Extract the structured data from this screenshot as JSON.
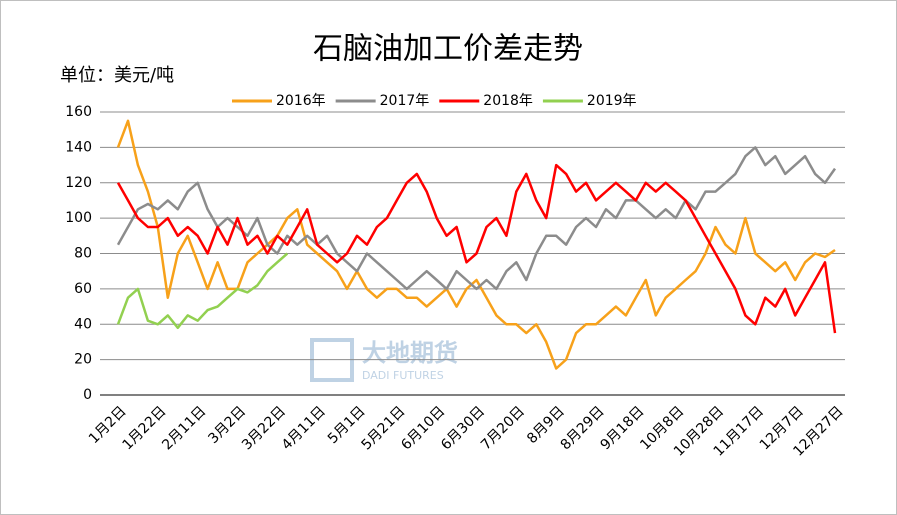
{
  "chart_data": {
    "type": "line",
    "title": "石脑油加工价差走势",
    "y_axis_label": "单位：美元/吨",
    "watermark": {
      "name": "大地期货",
      "subtitle": "DADI FUTURES"
    },
    "categories": [
      "1月2日",
      null,
      null,
      null,
      "1月22日",
      null,
      null,
      null,
      "2月11日",
      null,
      null,
      null,
      "3月2日",
      null,
      null,
      null,
      "3月22日",
      null,
      null,
      null,
      "4月11日",
      null,
      null,
      null,
      "5月1日",
      null,
      null,
      null,
      "5月21日",
      null,
      null,
      null,
      "6月10日",
      null,
      null,
      null,
      "6月30日",
      null,
      null,
      null,
      "7月20日",
      null,
      null,
      null,
      "8月9日",
      null,
      null,
      null,
      "8月29日",
      null,
      null,
      null,
      "9月18日",
      null,
      null,
      null,
      "10月8日",
      null,
      null,
      null,
      "10月28日",
      null,
      null,
      null,
      "11月17日",
      null,
      null,
      null,
      "12月7日",
      null,
      null,
      null,
      "12月27日"
    ],
    "series": [
      {
        "name": "2016年",
        "color": "#f7a11a",
        "values": [
          140,
          155,
          130,
          115,
          95,
          55,
          80,
          90,
          75,
          60,
          75,
          60,
          60,
          75,
          80,
          85,
          90,
          100,
          105,
          85,
          80,
          75,
          70,
          60,
          70,
          60,
          55,
          60,
          60,
          55,
          55,
          50,
          55,
          60,
          50,
          60,
          65,
          55,
          45,
          40,
          40,
          35,
          40,
          30,
          15,
          20,
          35,
          40,
          40,
          45,
          50,
          45,
          55,
          65,
          45,
          55,
          60,
          65,
          70,
          80,
          95,
          85,
          80,
          100,
          80,
          75,
          70,
          75,
          65,
          75,
          80,
          78,
          82
        ]
      },
      {
        "name": "2017年",
        "color": "#8c8c8c",
        "values": [
          85,
          95,
          105,
          108,
          105,
          110,
          105,
          115,
          120,
          105,
          95,
          100,
          95,
          90,
          100,
          85,
          80,
          90,
          85,
          90,
          85,
          90,
          80,
          75,
          70,
          80,
          75,
          70,
          65,
          60,
          65,
          70,
          65,
          60,
          70,
          65,
          60,
          65,
          60,
          70,
          75,
          65,
          80,
          90,
          90,
          85,
          95,
          100,
          95,
          105,
          100,
          110,
          110,
          105,
          100,
          105,
          100,
          110,
          105,
          115,
          115,
          120,
          125,
          135,
          140,
          130,
          135,
          125,
          130,
          135,
          125,
          120,
          128
        ]
      },
      {
        "name": "2018年",
        "color": "#ff0000",
        "values": [
          120,
          110,
          100,
          95,
          95,
          100,
          90,
          95,
          90,
          80,
          95,
          85,
          100,
          85,
          90,
          80,
          90,
          85,
          95,
          105,
          85,
          80,
          75,
          80,
          90,
          85,
          95,
          100,
          110,
          120,
          125,
          115,
          100,
          90,
          95,
          75,
          80,
          95,
          100,
          90,
          115,
          125,
          110,
          100,
          130,
          125,
          115,
          120,
          110,
          115,
          120,
          115,
          110,
          120,
          115,
          120,
          115,
          110,
          100,
          90,
          80,
          70,
          60,
          45,
          40,
          55,
          50,
          60,
          45,
          55,
          65,
          75,
          35
        ]
      },
      {
        "name": "2019年",
        "color": "#92d050",
        "values": [
          40,
          55,
          60,
          42,
          40,
          45,
          38,
          45,
          42,
          48,
          50,
          55,
          60,
          58,
          62,
          70,
          75,
          80,
          null,
          null,
          null,
          null,
          null,
          null,
          null,
          null,
          null,
          null,
          null,
          null,
          null,
          null,
          null,
          null,
          null,
          null,
          null,
          null,
          null,
          null,
          null,
          null,
          null,
          null,
          null,
          null,
          null,
          null,
          null,
          null,
          null,
          null,
          null,
          null,
          null,
          null,
          null,
          null,
          null,
          null,
          null,
          null,
          null,
          null,
          null,
          null,
          null,
          null,
          null,
          null,
          null,
          null,
          null
        ]
      }
    ],
    "ylim": [
      0,
      160
    ],
    "yticks": [
      0,
      20,
      40,
      60,
      80,
      100,
      120,
      140,
      160
    ],
    "grid": true,
    "legend": "top"
  }
}
